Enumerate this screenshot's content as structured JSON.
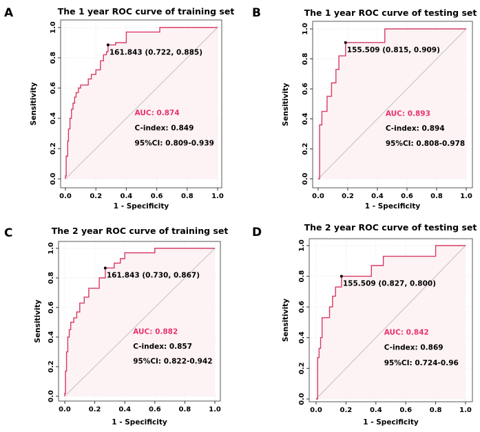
{
  "chart_data": [
    {
      "panel": "A",
      "type": "line",
      "title": "The 1 year ROC curve of training set",
      "xlabel": "1 - Specificity",
      "ylabel": "Sensitivity",
      "xlim": [
        0,
        1
      ],
      "ylim": [
        0,
        1
      ],
      "ticks": [
        "0.0",
        "0.2",
        "0.4",
        "0.6",
        "0.8",
        "1.0"
      ],
      "roc": [
        [
          0,
          0
        ],
        [
          0,
          0.02
        ],
        [
          0.005,
          0.02
        ],
        [
          0.005,
          0.15
        ],
        [
          0.015,
          0.15
        ],
        [
          0.015,
          0.25
        ],
        [
          0.02,
          0.25
        ],
        [
          0.02,
          0.33
        ],
        [
          0.03,
          0.33
        ],
        [
          0.03,
          0.4
        ],
        [
          0.04,
          0.4
        ],
        [
          0.04,
          0.46
        ],
        [
          0.05,
          0.46
        ],
        [
          0.05,
          0.5
        ],
        [
          0.06,
          0.5
        ],
        [
          0.06,
          0.54
        ],
        [
          0.07,
          0.54
        ],
        [
          0.07,
          0.57
        ],
        [
          0.085,
          0.57
        ],
        [
          0.085,
          0.6
        ],
        [
          0.1,
          0.6
        ],
        [
          0.1,
          0.62
        ],
        [
          0.15,
          0.62
        ],
        [
          0.15,
          0.66
        ],
        [
          0.17,
          0.66
        ],
        [
          0.17,
          0.69
        ],
        [
          0.2,
          0.69
        ],
        [
          0.2,
          0.72
        ],
        [
          0.23,
          0.72
        ],
        [
          0.23,
          0.78
        ],
        [
          0.25,
          0.78
        ],
        [
          0.25,
          0.82
        ],
        [
          0.27,
          0.82
        ],
        [
          0.27,
          0.84
        ],
        [
          0.28,
          0.84
        ],
        [
          0.28,
          0.885
        ],
        [
          0.33,
          0.885
        ],
        [
          0.33,
          0.9
        ],
        [
          0.4,
          0.9
        ],
        [
          0.4,
          0.97
        ],
        [
          0.62,
          0.97
        ],
        [
          0.62,
          1.0
        ],
        [
          1.0,
          1.0
        ]
      ],
      "cutoff": {
        "x": 0.28,
        "y": 0.885,
        "label": "161.843 (0.722, 0.885)"
      },
      "annotations": {
        "auc": "AUC: 0.874",
        "cindex": "C-index: 0.849",
        "ci": "95%CI: 0.809-0.939"
      }
    },
    {
      "panel": "B",
      "type": "line",
      "title": "The 1 year ROC curve of testing set",
      "xlabel": "1 - Specificity",
      "ylabel": "Sensitivity",
      "xlim": [
        0,
        1
      ],
      "ylim": [
        0,
        1
      ],
      "ticks": [
        "0.0",
        "0.2",
        "0.4",
        "0.6",
        "0.8",
        "1.0"
      ],
      "roc": [
        [
          0,
          0
        ],
        [
          0.01,
          0
        ],
        [
          0.01,
          0.36
        ],
        [
          0.025,
          0.36
        ],
        [
          0.025,
          0.45
        ],
        [
          0.06,
          0.45
        ],
        [
          0.06,
          0.55
        ],
        [
          0.09,
          0.55
        ],
        [
          0.09,
          0.64
        ],
        [
          0.12,
          0.64
        ],
        [
          0.12,
          0.73
        ],
        [
          0.14,
          0.73
        ],
        [
          0.14,
          0.82
        ],
        [
          0.185,
          0.82
        ],
        [
          0.185,
          0.909
        ],
        [
          0.45,
          0.909
        ],
        [
          0.45,
          1.0
        ],
        [
          1.0,
          1.0
        ]
      ],
      "cutoff": {
        "x": 0.185,
        "y": 0.909,
        "label": "155.509 (0.815, 0.909)"
      },
      "annotations": {
        "auc": "AUC: 0.893",
        "cindex": "C-index: 0.894",
        "ci": "95%CI: 0.808-0.978"
      }
    },
    {
      "panel": "C",
      "type": "line",
      "title": "The 2 year ROC curve of training set",
      "xlabel": "1 - Specificity",
      "ylabel": "Sensitivity",
      "xlim": [
        0,
        1
      ],
      "ylim": [
        0,
        1
      ],
      "ticks": [
        "0.0",
        "0.2",
        "0.4",
        "0.6",
        "0.8",
        "1.0"
      ],
      "roc": [
        [
          0,
          0
        ],
        [
          0,
          0.02
        ],
        [
          0.005,
          0.02
        ],
        [
          0.005,
          0.17
        ],
        [
          0.012,
          0.17
        ],
        [
          0.012,
          0.3
        ],
        [
          0.02,
          0.3
        ],
        [
          0.02,
          0.4
        ],
        [
          0.03,
          0.4
        ],
        [
          0.03,
          0.45
        ],
        [
          0.04,
          0.45
        ],
        [
          0.04,
          0.5
        ],
        [
          0.06,
          0.5
        ],
        [
          0.06,
          0.53
        ],
        [
          0.08,
          0.53
        ],
        [
          0.08,
          0.57
        ],
        [
          0.1,
          0.57
        ],
        [
          0.1,
          0.63
        ],
        [
          0.13,
          0.63
        ],
        [
          0.13,
          0.67
        ],
        [
          0.16,
          0.67
        ],
        [
          0.16,
          0.73
        ],
        [
          0.23,
          0.73
        ],
        [
          0.23,
          0.8
        ],
        [
          0.27,
          0.8
        ],
        [
          0.27,
          0.867
        ],
        [
          0.33,
          0.867
        ],
        [
          0.33,
          0.9
        ],
        [
          0.37,
          0.9
        ],
        [
          0.37,
          0.93
        ],
        [
          0.4,
          0.93
        ],
        [
          0.4,
          0.97
        ],
        [
          0.6,
          0.97
        ],
        [
          0.6,
          1.0
        ],
        [
          1.0,
          1.0
        ]
      ],
      "cutoff": {
        "x": 0.27,
        "y": 0.867,
        "label": "161.843 (0.730, 0.867)"
      },
      "annotations": {
        "auc": "AUC: 0.882",
        "cindex": "C-index: 0.857",
        "ci": "95%CI: 0.822-0.942"
      }
    },
    {
      "panel": "D",
      "type": "line",
      "title": "The 2 year ROC curve of testing set",
      "xlabel": "1 - Specificity",
      "ylabel": "Sensitivity",
      "xlim": [
        0,
        1
      ],
      "ylim": [
        0,
        1
      ],
      "ticks": [
        "0.0",
        "0.2",
        "0.4",
        "0.6",
        "0.8",
        "1.0"
      ],
      "roc": [
        [
          0,
          0
        ],
        [
          0.01,
          0
        ],
        [
          0.01,
          0.27
        ],
        [
          0.02,
          0.27
        ],
        [
          0.02,
          0.33
        ],
        [
          0.03,
          0.33
        ],
        [
          0.03,
          0.4
        ],
        [
          0.04,
          0.4
        ],
        [
          0.04,
          0.53
        ],
        [
          0.09,
          0.53
        ],
        [
          0.09,
          0.6
        ],
        [
          0.11,
          0.6
        ],
        [
          0.11,
          0.67
        ],
        [
          0.13,
          0.67
        ],
        [
          0.13,
          0.73
        ],
        [
          0.17,
          0.73
        ],
        [
          0.17,
          0.8
        ],
        [
          0.37,
          0.8
        ],
        [
          0.37,
          0.87
        ],
        [
          0.45,
          0.87
        ],
        [
          0.45,
          0.93
        ],
        [
          0.8,
          0.93
        ],
        [
          0.8,
          1.0
        ],
        [
          1.0,
          1.0
        ]
      ],
      "cutoff": {
        "x": 0.17,
        "y": 0.8,
        "label": "155.509 (0.827, 0.800)"
      },
      "annotations": {
        "auc": "AUC: 0.842",
        "cindex": "C-index: 0.869",
        "ci": "95%CI: 0.724-0.96"
      }
    }
  ],
  "colors": {
    "curve": "#d63a62",
    "fill": "#fdf2f4",
    "diagonal": "#c0c0c0",
    "grid": "#e6e6e6",
    "auc": "#e8336b"
  }
}
